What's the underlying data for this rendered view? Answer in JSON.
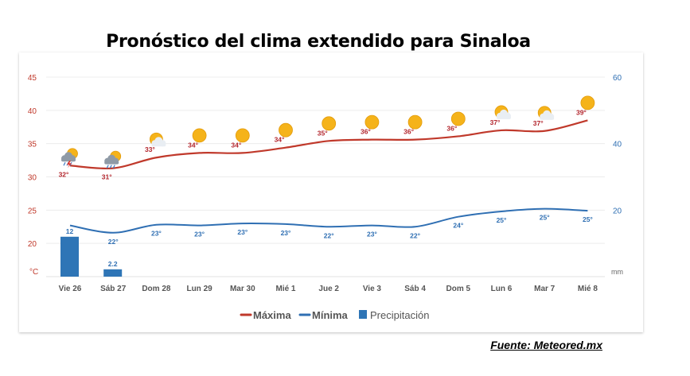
{
  "title": "Pronóstico del clima extendido para Sinaloa",
  "source": "Fuente: Meteored.mx",
  "chart_data": {
    "type": "line",
    "categories": [
      "Vie 26",
      "Sáb 27",
      "Dom 28",
      "Lun 29",
      "Mar 30",
      "Mié 1",
      "Jue 2",
      "Vie 3",
      "Sáb 4",
      "Dom 5",
      "Lun 6",
      "Mar 7",
      "Mié 8"
    ],
    "series": [
      {
        "name": "Máxima",
        "type": "line",
        "axis": "left",
        "color": "#c0392b",
        "values": [
          32,
          31,
          33,
          34,
          34,
          34,
          35,
          36,
          36,
          36,
          37,
          37,
          39
        ],
        "labels": [
          "32°",
          "31°",
          "33°",
          "34°",
          "34°",
          "34°",
          "35°",
          "36°",
          "36°",
          "36°",
          "37°",
          "37°",
          "39°"
        ],
        "curve": [
          31.7,
          31.3,
          32.9,
          33.6,
          33.6,
          34.4,
          35.4,
          35.6,
          35.6,
          36.1,
          37.0,
          36.9,
          38.5
        ]
      },
      {
        "name": "Mínima",
        "type": "line",
        "axis": "left",
        "color": "#2f6fb3",
        "values": [
          null,
          22,
          23,
          23,
          23,
          23,
          22,
          23,
          22,
          24,
          25,
          25,
          25
        ],
        "labels": [
          "",
          "22°",
          "23°",
          "23°",
          "23°",
          "23°",
          "22°",
          "23°",
          "22°",
          "24°",
          "25°",
          "25°",
          "25°"
        ],
        "curve": [
          22.7,
          21.6,
          22.8,
          22.7,
          23.0,
          22.9,
          22.5,
          22.7,
          22.5,
          24.0,
          24.8,
          25.2,
          24.9
        ]
      },
      {
        "name": "Precipitación",
        "type": "bar",
        "axis": "right",
        "color": "#2e75b6",
        "values": [
          12,
          2.2,
          0,
          0,
          0,
          0,
          0,
          0,
          0,
          0,
          0,
          0,
          0
        ],
        "labels": [
          "12",
          "2.2",
          "",
          "",
          "",
          "",
          "",
          "",
          "",
          "",
          "",
          "",
          ""
        ]
      }
    ],
    "icons": [
      "storm-sun-icon",
      "rain-sun-icon",
      "partly-cloudy-icon",
      "sun-icon",
      "sun-icon",
      "sun-icon",
      "sun-icon",
      "sun-icon",
      "sun-icon",
      "sun-icon",
      "partly-cloudy-icon",
      "partly-cloudy-icon",
      "sun-icon"
    ],
    "y_left": {
      "unit": "°C",
      "ticks": [
        45,
        40,
        35,
        30,
        25,
        20
      ],
      "range": [
        15,
        45
      ]
    },
    "y_right": {
      "unit": "mm",
      "ticks": [
        60,
        40,
        20
      ],
      "range": [
        0,
        60
      ]
    },
    "grid": true,
    "legend": {
      "position": "bottom"
    }
  }
}
